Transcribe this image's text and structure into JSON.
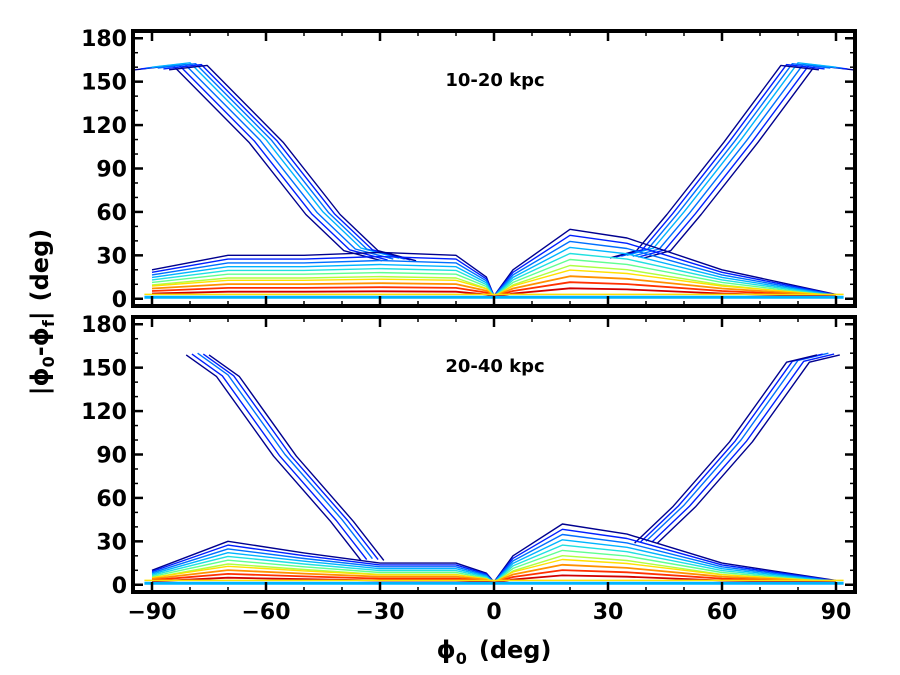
{
  "chart_data": [
    {
      "type": "contour",
      "panel_label": "10-20 kpc",
      "xlim": [
        -95,
        95
      ],
      "ylim": [
        -5,
        185
      ],
      "xticks": [
        -90,
        -60,
        -30,
        0,
        30,
        60,
        90
      ],
      "yticks": [
        0,
        30,
        60,
        90,
        120,
        150,
        180
      ],
      "colormap": "jet",
      "features": {
        "left_arm": [
          [
            -90,
            160
          ],
          [
            -80,
            163
          ],
          [
            -60,
            110
          ],
          [
            -45,
            60
          ],
          [
            -35,
            35
          ],
          [
            -25,
            28
          ]
        ],
        "right_arm": [
          [
            90,
            160
          ],
          [
            80,
            163
          ],
          [
            65,
            110
          ],
          [
            50,
            60
          ],
          [
            42,
            35
          ],
          [
            35,
            30
          ]
        ],
        "left_band": [
          [
            -90,
            20
          ],
          [
            -70,
            30
          ],
          [
            -50,
            30
          ],
          [
            -30,
            32
          ],
          [
            -10,
            30
          ],
          [
            -2,
            15
          ],
          [
            0,
            2
          ]
        ],
        "right_band": [
          [
            0,
            2
          ],
          [
            5,
            20
          ],
          [
            20,
            48
          ],
          [
            35,
            42
          ],
          [
            60,
            20
          ],
          [
            90,
            3
          ]
        ]
      }
    },
    {
      "type": "contour",
      "panel_label": "20-40 kpc",
      "xlim": [
        -95,
        95
      ],
      "ylim": [
        -5,
        185
      ],
      "xticks": [
        -90,
        -60,
        -30,
        0,
        30,
        60,
        90
      ],
      "yticks": [
        0,
        30,
        60,
        90,
        120,
        150,
        180
      ],
      "colormap": "jet",
      "features": {
        "left_arm": [
          [
            -78,
            160
          ],
          [
            -70,
            145
          ],
          [
            -55,
            90
          ],
          [
            -40,
            45
          ],
          [
            -32,
            18
          ]
        ],
        "right_arm": [
          [
            88,
            160
          ],
          [
            80,
            155
          ],
          [
            65,
            100
          ],
          [
            50,
            55
          ],
          [
            40,
            30
          ]
        ],
        "left_band": [
          [
            -90,
            10
          ],
          [
            -70,
            30
          ],
          [
            -50,
            22
          ],
          [
            -30,
            15
          ],
          [
            -10,
            15
          ],
          [
            -2,
            8
          ],
          [
            0,
            2
          ]
        ],
        "right_band": [
          [
            0,
            2
          ],
          [
            5,
            20
          ],
          [
            18,
            42
          ],
          [
            35,
            35
          ],
          [
            60,
            15
          ],
          [
            90,
            3
          ]
        ]
      }
    }
  ],
  "xlabel_main": "ϕ",
  "xlabel_sub": "0",
  "xlabel_unit": "(deg)",
  "ylabel_bar_left": "|",
  "ylabel_phi1": "ϕ",
  "ylabel_sub1": "0",
  "ylabel_minus": "-",
  "ylabel_phi2": "ϕ",
  "ylabel_sub2": "f",
  "ylabel_bar_right": "|",
  "ylabel_unit": "(deg)",
  "tick_labels_x": [
    "−90",
    "−60",
    "−30",
    "0",
    "30",
    "60",
    "90"
  ],
  "tick_labels_y": [
    "0",
    "30",
    "60",
    "90",
    "120",
    "150",
    "180"
  ],
  "colors": {
    "levels": [
      "#00008f",
      "#0020ff",
      "#0070ff",
      "#00b4ff",
      "#20e0e0",
      "#60ff90",
      "#b0ff40",
      "#ffe000",
      "#ff9000",
      "#ff3000",
      "#d00000"
    ]
  }
}
